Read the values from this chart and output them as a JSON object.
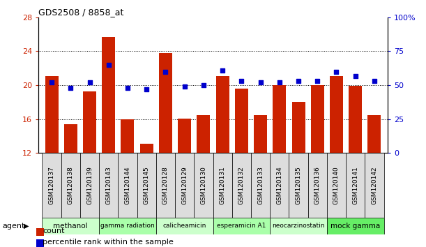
{
  "title": "GDS2508 / 8858_at",
  "samples": [
    "GSM120137",
    "GSM120138",
    "GSM120139",
    "GSM120143",
    "GSM120144",
    "GSM120145",
    "GSM120128",
    "GSM120129",
    "GSM120130",
    "GSM120131",
    "GSM120132",
    "GSM120133",
    "GSM120134",
    "GSM120135",
    "GSM120136",
    "GSM120140",
    "GSM120141",
    "GSM120142"
  ],
  "counts": [
    21.1,
    15.4,
    19.3,
    25.7,
    16.0,
    13.1,
    23.8,
    16.1,
    16.5,
    21.1,
    19.6,
    16.5,
    20.0,
    18.0,
    20.0,
    21.1,
    19.9,
    16.5
  ],
  "percentiles": [
    52,
    48,
    52,
    65,
    48,
    47,
    60,
    49,
    50,
    61,
    53,
    52,
    52,
    53,
    53,
    60,
    57,
    53
  ],
  "groups": [
    {
      "label": "methanol",
      "start": 0,
      "end": 3,
      "color": "#ccffcc"
    },
    {
      "label": "gamma radiation",
      "start": 3,
      "end": 6,
      "color": "#aaffaa"
    },
    {
      "label": "calicheamicin",
      "start": 6,
      "end": 9,
      "color": "#ccffcc"
    },
    {
      "label": "esperamicin A1",
      "start": 9,
      "end": 12,
      "color": "#aaffaa"
    },
    {
      "label": "neocarzinostatin",
      "start": 12,
      "end": 15,
      "color": "#ccffcc"
    },
    {
      "label": "mock gamma",
      "start": 15,
      "end": 18,
      "color": "#66ee66"
    }
  ],
  "bar_color": "#cc2200",
  "dot_color": "#0000cc",
  "ylim_left": [
    12,
    28
  ],
  "ylim_right": [
    0,
    100
  ],
  "yticks_left": [
    12,
    16,
    20,
    24,
    28
  ],
  "yticks_right": [
    0,
    25,
    50,
    75,
    100
  ],
  "cell_bg": "#dddddd",
  "tick_color_left": "#cc2200",
  "tick_color_right": "#0000cc"
}
